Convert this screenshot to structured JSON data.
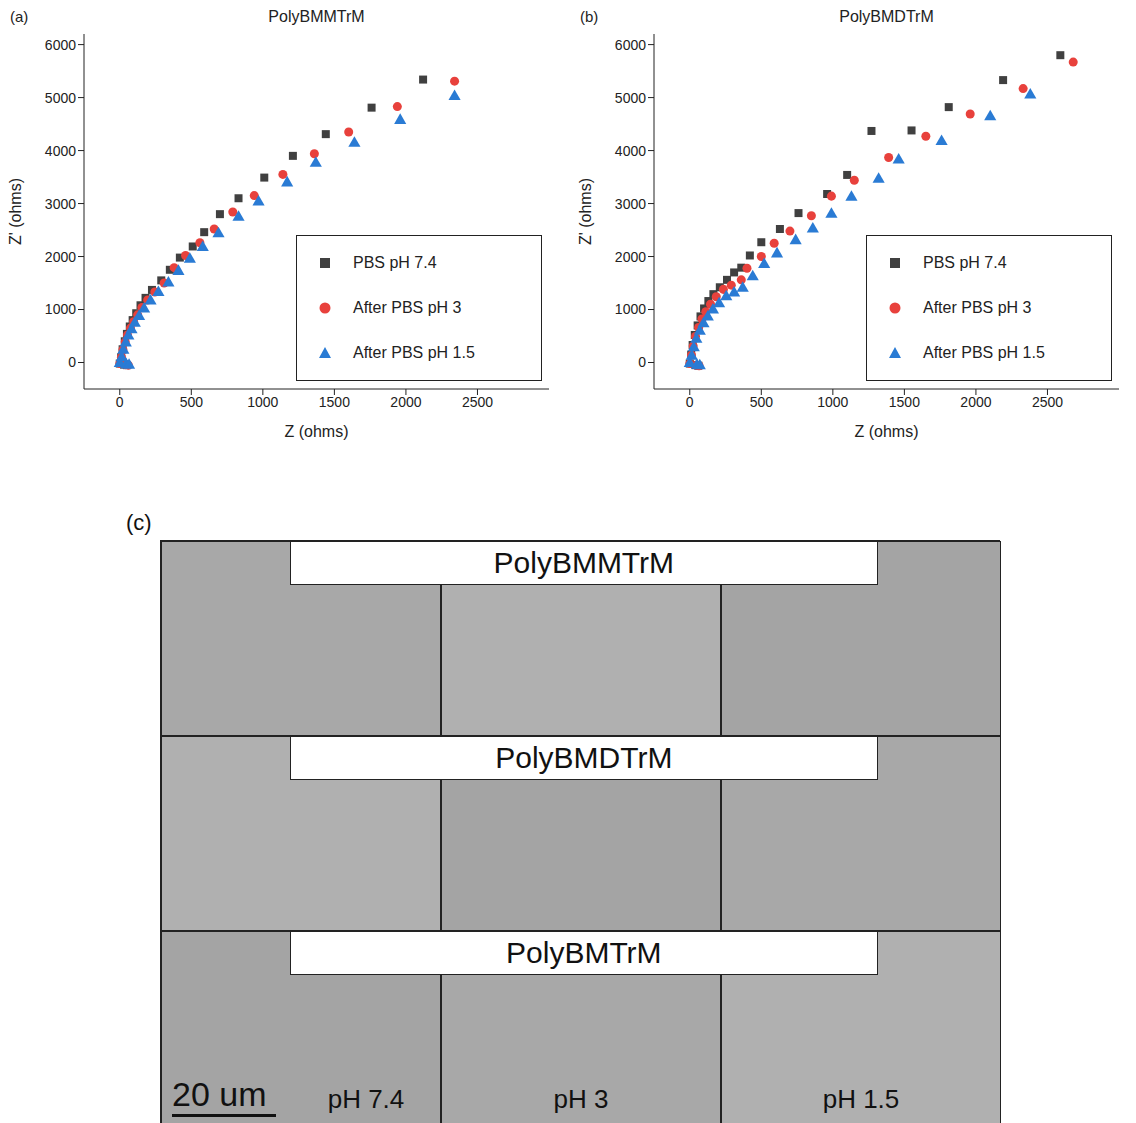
{
  "chart_data": [
    {
      "type": "scatter",
      "label": "(a)",
      "title": "PolyBMMTrM",
      "x_label": "Z (ohms)",
      "y_label": "Z' (ohms)",
      "xlim": [
        -250,
        3000
      ],
      "xticks": [
        0,
        500,
        1000,
        1500,
        2000,
        2500
      ],
      "ylim": [
        -500,
        6200
      ],
      "yticks": [
        0,
        1000,
        2000,
        3000,
        4000,
        5000,
        6000
      ],
      "legend": "lower right",
      "series": [
        {
          "name": "PBS pH 7.4",
          "color": "#404040",
          "marker": "square",
          "x": [
            0,
            30,
            50,
            10,
            20,
            35,
            50,
            70,
            90,
            115,
            145,
            180,
            225,
            290,
            350,
            420,
            510,
            590,
            700,
            830,
            1010,
            1210,
            1440,
            1760,
            2120
          ],
          "values": [
            -20,
            -40,
            -50,
            100,
            250,
            400,
            540,
            680,
            800,
            930,
            1080,
            1220,
            1370,
            1550,
            1750,
            1980,
            2190,
            2460,
            2800,
            3100,
            3490,
            3900,
            4310,
            4810,
            5340
          ]
        },
        {
          "name": "After PBS pH 3",
          "color": "#e8413c",
          "marker": "circle",
          "x": [
            0,
            40,
            60,
            12,
            22,
            38,
            54,
            75,
            97,
            125,
            155,
            195,
            245,
            310,
            380,
            460,
            560,
            660,
            790,
            940,
            1140,
            1360,
            1600,
            1940,
            2340
          ],
          "values": [
            -20,
            -40,
            -50,
            100,
            240,
            390,
            520,
            650,
            770,
            900,
            1040,
            1180,
            1330,
            1500,
            1790,
            2020,
            2260,
            2520,
            2840,
            3150,
            3550,
            3940,
            4350,
            4830,
            5310
          ]
        },
        {
          "name": "After PBS pH 1.5",
          "color": "#2a7bd4",
          "marker": "triangle",
          "x": [
            0,
            45,
            65,
            14,
            25,
            42,
            60,
            82,
            105,
            135,
            170,
            215,
            270,
            340,
            410,
            490,
            580,
            690,
            830,
            970,
            1170,
            1370,
            1640,
            1960,
            2340
          ],
          "values": [
            -20,
            -40,
            -50,
            90,
            230,
            370,
            500,
            620,
            740,
            870,
            1010,
            1160,
            1320,
            1500,
            1720,
            1950,
            2170,
            2430,
            2740,
            3030,
            3390,
            3760,
            4140,
            4570,
            5020
          ]
        }
      ]
    },
    {
      "type": "scatter",
      "label": "(b)",
      "title": "PolyBMDTrM",
      "x_label": "Z (ohms)",
      "y_label": "Z' (ohms)",
      "xlim": [
        -250,
        3000
      ],
      "xticks": [
        0,
        500,
        1000,
        1500,
        2000,
        2500
      ],
      "ylim": [
        -500,
        6200
      ],
      "yticks": [
        0,
        1000,
        2000,
        3000,
        4000,
        5000,
        6000
      ],
      "legend": "lower right",
      "series": [
        {
          "name": "PBS pH 7.4",
          "color": "#404040",
          "marker": "square",
          "x": [
            0,
            40,
            60,
            10,
            20,
            35,
            55,
            75,
            100,
            130,
            165,
            210,
            260,
            310,
            360,
            420,
            500,
            630,
            760,
            960,
            1100,
            1270,
            1550,
            1810,
            2190,
            2590
          ],
          "values": [
            -20,
            -50,
            -60,
            150,
            330,
            520,
            700,
            870,
            1020,
            1160,
            1290,
            1420,
            1560,
            1700,
            1790,
            2020,
            2270,
            2520,
            2820,
            3180,
            3540,
            4370,
            4380,
            4820,
            5330,
            5800
          ]
        },
        {
          "name": "After PBS pH 3",
          "color": "#e8413c",
          "marker": "circle",
          "x": [
            0,
            45,
            65,
            12,
            24,
            40,
            62,
            85,
            112,
            145,
            185,
            235,
            290,
            360,
            400,
            500,
            590,
            700,
            850,
            990,
            1150,
            1390,
            1650,
            1960,
            2330,
            2680
          ],
          "values": [
            -20,
            -50,
            -60,
            140,
            310,
            490,
            660,
            820,
            960,
            1100,
            1240,
            1380,
            1460,
            1560,
            1780,
            2000,
            2250,
            2480,
            2770,
            3140,
            3440,
            3870,
            4270,
            4690,
            5170,
            5670
          ]
        },
        {
          "name": "After PBS pH 1.5",
          "color": "#2a7bd4",
          "marker": "triangle",
          "x": [
            0,
            50,
            70,
            14,
            28,
            46,
            70,
            96,
            126,
            162,
            205,
            255,
            310,
            370,
            440,
            520,
            610,
            740,
            860,
            990,
            1130,
            1320,
            1460,
            1760,
            2100,
            2380
          ],
          "values": [
            -20,
            -50,
            -60,
            120,
            280,
            440,
            590,
            730,
            860,
            990,
            1110,
            1240,
            1310,
            1400,
            1620,
            1850,
            2050,
            2300,
            2520,
            2800,
            3120,
            3460,
            3820,
            4170,
            4640,
            5050
          ]
        }
      ]
    }
  ],
  "micrographs": {
    "label": "(c)",
    "rows": [
      "PolyBMMTrM",
      "PolyBMDTrM",
      "PolyBMTrM"
    ],
    "columns": [
      "pH 7.4",
      "pH 3",
      "pH 1.5"
    ],
    "scale_bar": "20 um"
  }
}
